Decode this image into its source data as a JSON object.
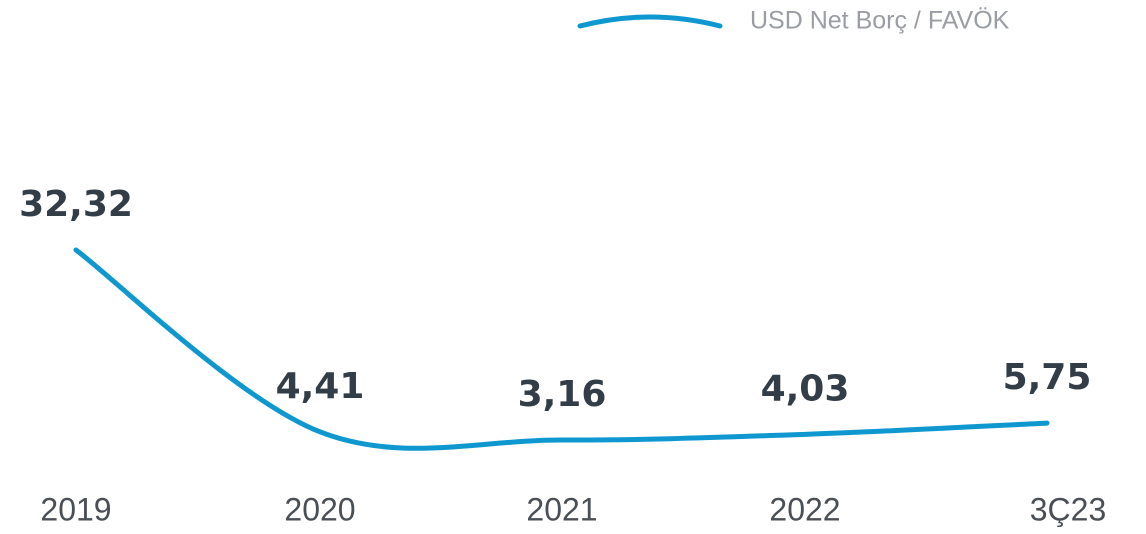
{
  "chart_data": {
    "type": "line",
    "categories": [
      "2019",
      "2020",
      "2021",
      "2022",
      "3Ç23"
    ],
    "series": [
      {
        "name": "USD Net Borç / FAVÖK",
        "color": "#0f98cf",
        "values": [
          32.32,
          4.41,
          3.16,
          4.03,
          5.75
        ],
        "value_labels": [
          "32,32",
          "4,41",
          "3,16",
          "4,03",
          "5,75"
        ]
      }
    ],
    "legend": "top-right"
  }
}
